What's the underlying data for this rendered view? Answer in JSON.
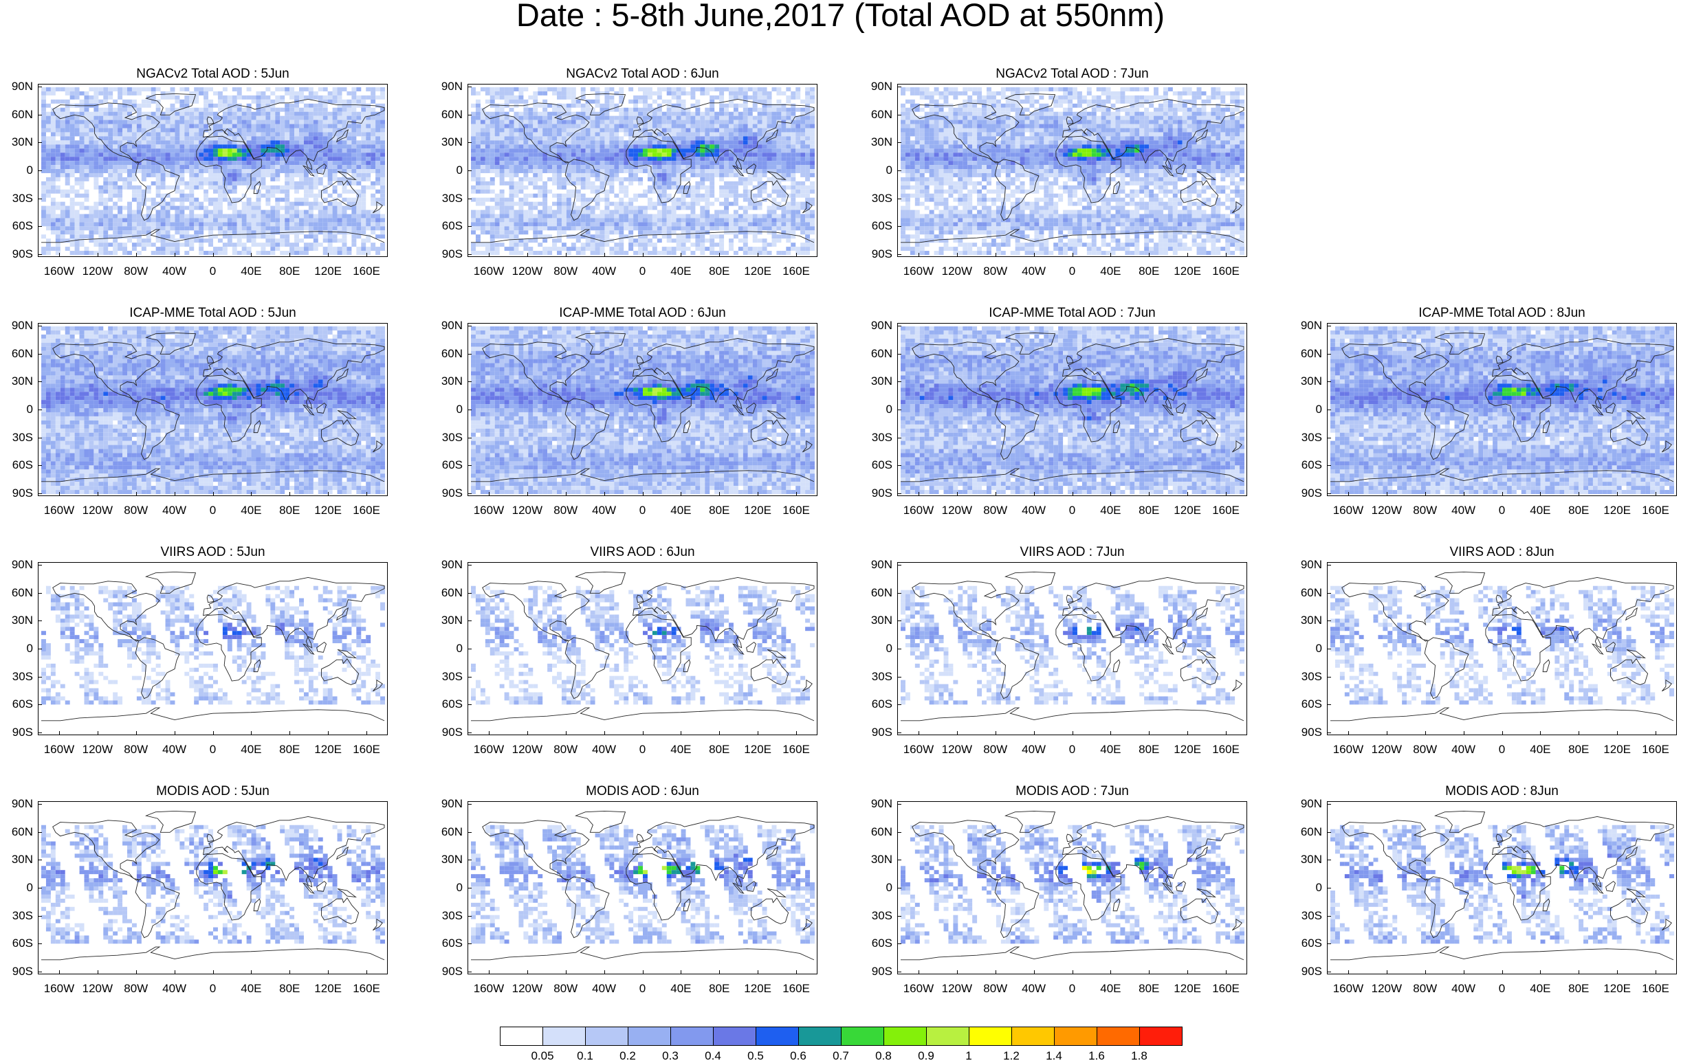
{
  "title": "Date : 5-8th June,2017 (Total AOD at 550nm)",
  "lat_labels": [
    "90N",
    "60N",
    "30N",
    "0",
    "30S",
    "60S",
    "90S"
  ],
  "lon_labels": [
    "160W",
    "120W",
    "80W",
    "40W",
    "0",
    "40E",
    "80E",
    "120E",
    "160E"
  ],
  "panels": [
    {
      "title": "NGACv2 Total AOD : 5Jun",
      "row": 0,
      "col": 0,
      "style": "model",
      "dust": 0.75
    },
    {
      "title": "NGACv2 Total AOD : 6Jun",
      "row": 0,
      "col": 1,
      "style": "model",
      "dust": 0.8
    },
    {
      "title": "NGACv2 Total AOD : 7Jun",
      "row": 0,
      "col": 2,
      "style": "model",
      "dust": 0.7
    },
    {
      "title": "ICAP-MME Total AOD : 5Jun",
      "row": 1,
      "col": 0,
      "style": "ensemble",
      "dust": 0.6
    },
    {
      "title": "ICAP-MME Total AOD : 6Jun",
      "row": 1,
      "col": 1,
      "style": "ensemble",
      "dust": 0.65
    },
    {
      "title": "ICAP-MME Total AOD : 7Jun",
      "row": 1,
      "col": 2,
      "style": "ensemble",
      "dust": 0.7
    },
    {
      "title": "ICAP-MME Total AOD : 8Jun",
      "row": 1,
      "col": 3,
      "style": "ensemble",
      "dust": 0.55
    },
    {
      "title": "VIIRS AOD : 5Jun",
      "row": 2,
      "col": 0,
      "style": "viirs",
      "dust": 0.4
    },
    {
      "title": "VIIRS AOD : 6Jun",
      "row": 2,
      "col": 1,
      "style": "viirs",
      "dust": 0.45
    },
    {
      "title": "VIIRS AOD : 7Jun",
      "row": 2,
      "col": 2,
      "style": "viirs",
      "dust": 0.5
    },
    {
      "title": "VIIRS AOD : 8Jun",
      "row": 2,
      "col": 3,
      "style": "viirs",
      "dust": 0.4
    },
    {
      "title": "MODIS AOD : 5Jun",
      "row": 3,
      "col": 0,
      "style": "modis",
      "dust": 0.85
    },
    {
      "title": "MODIS AOD : 6Jun",
      "row": 3,
      "col": 1,
      "style": "modis",
      "dust": 0.9
    },
    {
      "title": "MODIS AOD : 7Jun",
      "row": 3,
      "col": 2,
      "style": "modis",
      "dust": 0.85
    },
    {
      "title": "MODIS AOD : 8Jun",
      "row": 3,
      "col": 3,
      "style": "modis",
      "dust": 0.8
    }
  ],
  "colorbar": {
    "labels": [
      "0.05",
      "0.1",
      "0.2",
      "0.3",
      "0.4",
      "0.5",
      "0.6",
      "0.7",
      "0.8",
      "0.9",
      "1",
      "1.2",
      "1.4",
      "1.6",
      "1.8"
    ],
    "colors": [
      "#ffffff",
      "#d4e0fa",
      "#b6c8f6",
      "#98b0f2",
      "#8299ee",
      "#6a78e6",
      "#1e5ff0",
      "#189898",
      "#38d838",
      "#84f00a",
      "#b8f040",
      "#ffff00",
      "#ffc800",
      "#ff9a00",
      "#ff6a00",
      "#ff1e0a"
    ]
  }
}
